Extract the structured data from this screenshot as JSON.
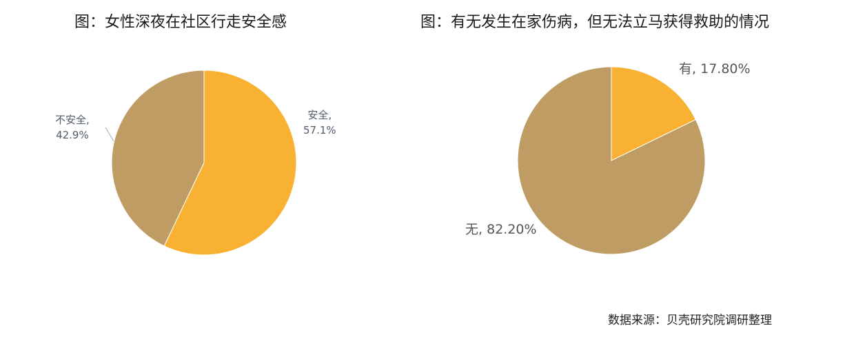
{
  "colors": {
    "accent": "#F8B133",
    "secondary": "#BE9C63"
  },
  "source": "数据来源：贝壳研究院调研整理",
  "chart_data": [
    {
      "type": "pie",
      "title": "图：女性深夜在社区行走安全感",
      "slices": [
        {
          "label": "安全",
          "value": 57.1,
          "display": "57.1%",
          "color": "#F8B133"
        },
        {
          "label": "不安全",
          "value": 42.9,
          "display": "42.9%",
          "color": "#BE9C63"
        }
      ]
    },
    {
      "type": "pie",
      "title": "图：有无发生在家伤病，但无法立马获得救助的情况",
      "slices": [
        {
          "label": "有",
          "value": 17.8,
          "display": "17.80%",
          "color": "#F8B133"
        },
        {
          "label": "无",
          "value": 82.2,
          "display": "82.20%",
          "color": "#BE9C63"
        }
      ]
    }
  ]
}
